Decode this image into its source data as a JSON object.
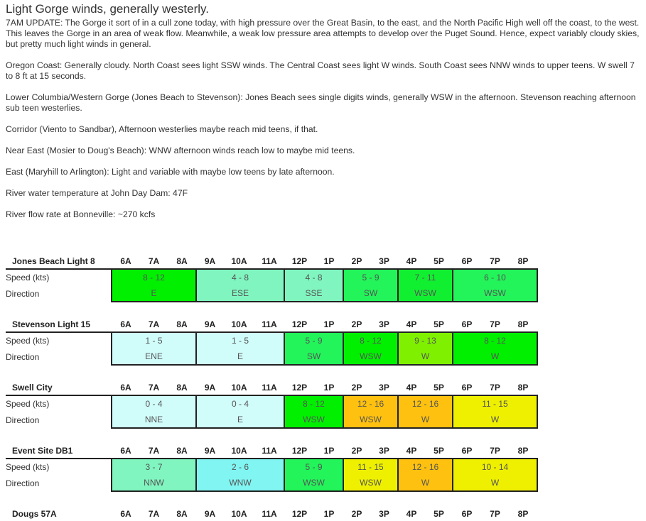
{
  "title": "Light Gorge winds, generally westerly.",
  "paragraphs": [
    "7AM UPDATE: The Gorge it sort of in a cull zone today, with high pressure over the Great Basin, to the east, and the North Pacific High well off the coast, to the west. This leaves the Gorge in an area of weak flow. Meanwhile, a weak low pressure area attempts to develop over the Puget Sound. Hence, expect variably cloudy skies, but pretty much light winds in general.",
    "Oregon Coast: Generally cloudy. North Coast sees light SSW winds. The Central Coast sees light W winds. South Coast sees NNW winds to upper teens. W swell 7 to 8 ft at 15 seconds.",
    "Lower Columbia/Western Gorge (Jones Beach to Stevenson): Jones Beach sees single digits winds, generally WSW in the afternoon. Stevenson reaching afternoon sub teen westerlies.",
    "Corridor (Viento to Sandbar), Afternoon westerlies maybe reach mid teens, if that.",
    "Near East (Mosier to Doug's Beach): WNW afternoon winds reach low to maybe mid teens.",
    "East (Maryhill to Arlington): Light and variable with maybe low teens by late afternoon.",
    "River water temperature at John Day Dam: 47F",
    "River flow rate at Bonneville: ~270 kcfs"
  ],
  "hours": [
    "6A",
    "7A",
    "8A",
    "9A",
    "10A",
    "11A",
    "12P",
    "1P",
    "2P",
    "3P",
    "4P",
    "5P",
    "6P",
    "7P",
    "8P"
  ],
  "row_labels": {
    "speed": "Speed (kts)",
    "direction": "Direction"
  },
  "block_spans": [
    3,
    3,
    2,
    2,
    2,
    3
  ],
  "stations": [
    {
      "name": "Jones Beach Light 8",
      "blocks": [
        {
          "speed": "8 - 12",
          "dir": "E",
          "color": "#00f000"
        },
        {
          "speed": "4 - 8",
          "dir": "ESE",
          "color": "#80f5c0"
        },
        {
          "speed": "4 - 8",
          "dir": "SSE",
          "color": "#80f5c0"
        },
        {
          "speed": "5 - 9",
          "dir": "SW",
          "color": "#22f45a"
        },
        {
          "speed": "7 - 11",
          "dir": "WSW",
          "color": "#11f030"
        },
        {
          "speed": "6 - 10",
          "dir": "WSW",
          "color": "#22f45a"
        }
      ]
    },
    {
      "name": "Stevenson Light 15",
      "blocks": [
        {
          "speed": "1 - 5",
          "dir": "ENE",
          "color": "#d0fcfa"
        },
        {
          "speed": "1 - 5",
          "dir": "E",
          "color": "#d0fcfa"
        },
        {
          "speed": "5 - 9",
          "dir": "SW",
          "color": "#22f45a"
        },
        {
          "speed": "8 - 12",
          "dir": "WSW",
          "color": "#00f000"
        },
        {
          "speed": "9 - 13",
          "dir": "W",
          "color": "#7ff000"
        },
        {
          "speed": "8 - 12",
          "dir": "W",
          "color": "#00f000"
        }
      ]
    },
    {
      "name": "Swell City",
      "blocks": [
        {
          "speed": "0 - 4",
          "dir": "NNE",
          "color": "#d0fcfa"
        },
        {
          "speed": "0 - 4",
          "dir": "E",
          "color": "#d0fcfa"
        },
        {
          "speed": "8 - 12",
          "dir": "WSW",
          "color": "#00f000"
        },
        {
          "speed": "12 - 16",
          "dir": "WSW",
          "color": "#ffc10f"
        },
        {
          "speed": "12 - 16",
          "dir": "W",
          "color": "#ffc10f"
        },
        {
          "speed": "11 - 15",
          "dir": "W",
          "color": "#eef000"
        }
      ]
    },
    {
      "name": "Event Site DB1",
      "blocks": [
        {
          "speed": "3 - 7",
          "dir": "NNW",
          "color": "#80f5c0"
        },
        {
          "speed": "2 - 6",
          "dir": "WNW",
          "color": "#80f5f2"
        },
        {
          "speed": "5 - 9",
          "dir": "WSW",
          "color": "#22f45a"
        },
        {
          "speed": "11 - 15",
          "dir": "WSW",
          "color": "#eef000"
        },
        {
          "speed": "12 - 16",
          "dir": "W",
          "color": "#ffc10f"
        },
        {
          "speed": "10 - 14",
          "dir": "W",
          "color": "#eef000"
        }
      ]
    },
    {
      "name": "Dougs 57A",
      "blocks": []
    }
  ]
}
